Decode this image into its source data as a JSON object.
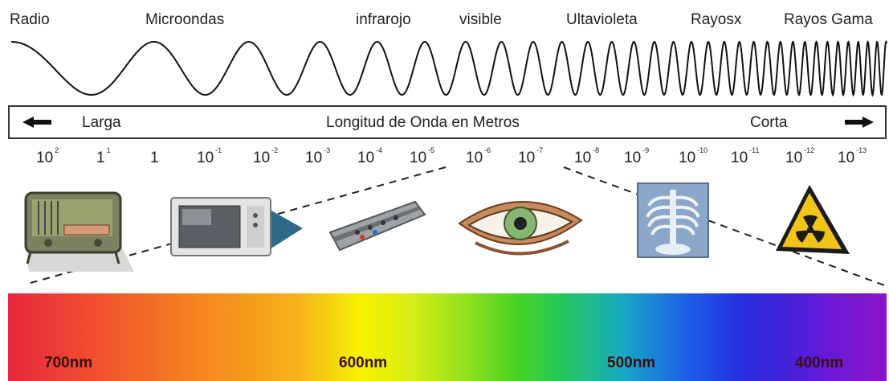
{
  "bands": [
    "Radio",
    "Microondas",
    "infrarojo",
    "visible",
    "Ultavioleta",
    "Rayosx",
    "Rayos Gama"
  ],
  "wavelength_bar": {
    "long_label": "Larga",
    "title": "Longitud de Onda en Metros",
    "short_label": "Corta"
  },
  "ticks": [
    {
      "base": "10",
      "exp": "2"
    },
    {
      "base": "1",
      "exp": "1"
    },
    {
      "base": "1",
      "exp": ""
    },
    {
      "base": "10",
      "exp": "-1"
    },
    {
      "base": "10",
      "exp": "-2"
    },
    {
      "base": "10",
      "exp": "-3"
    },
    {
      "base": "10",
      "exp": "-4"
    },
    {
      "base": "10",
      "exp": "-5"
    },
    {
      "base": "10",
      "exp": "-6"
    },
    {
      "base": "10",
      "exp": "-7"
    },
    {
      "base": "10",
      "exp": "-8"
    },
    {
      "base": "10",
      "exp": "-9"
    },
    {
      "base": "10",
      "exp": "-10"
    },
    {
      "base": "10",
      "exp": "-11"
    },
    {
      "base": "10",
      "exp": "-12"
    },
    {
      "base": "10",
      "exp": "-13"
    }
  ],
  "icons": [
    "radio-icon",
    "microwave-oven-icon",
    "remote-control-icon",
    "eye-icon",
    "xray-icon",
    "radiation-warning-icon"
  ],
  "spectrum_labels": [
    "700nm",
    "600nm",
    "500nm",
    "400nm"
  ],
  "colors": {
    "text": "#222222",
    "wave": "#111111",
    "nm_text": "#3a1010"
  }
}
